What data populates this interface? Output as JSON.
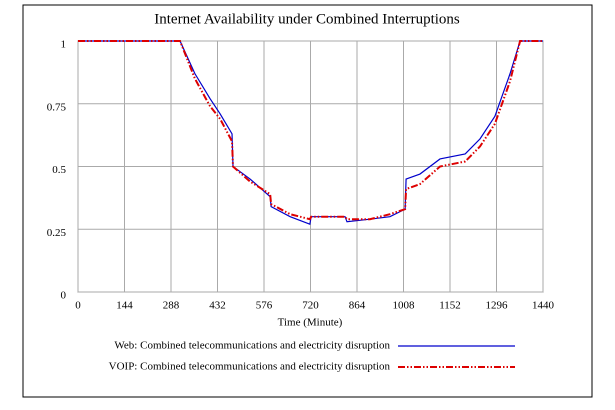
{
  "chart_data": {
    "type": "line",
    "title": "Internet Availability under Combined Interruptions",
    "x_label": "Time (Minute)",
    "x": [
      0,
      316,
      362,
      409,
      440,
      477,
      480,
      533,
      595,
      598,
      657,
      718,
      722,
      827,
      833,
      904,
      966,
      1013,
      1016,
      1059,
      1121,
      1199,
      1245,
      1291,
      1338,
      1369,
      1440
    ],
    "series": [
      {
        "name": "Web: Combined telecommunications and electricity disruption",
        "color": "#0000cc",
        "dash": "solid",
        "values": [
          1,
          1,
          0.87,
          0.77,
          0.71,
          0.63,
          0.5,
          0.45,
          0.38,
          0.34,
          0.3,
          0.27,
          0.3,
          0.3,
          0.28,
          0.29,
          0.3,
          0.33,
          0.45,
          0.47,
          0.53,
          0.55,
          0.61,
          0.7,
          0.87,
          1,
          1
        ]
      },
      {
        "name": "VOIP: Combined telecommunications and electricity disruption",
        "color": "#dd0000",
        "dash": "dash-dot-dot",
        "values": [
          1,
          1,
          0.85,
          0.74,
          0.69,
          0.6,
          0.5,
          0.44,
          0.39,
          0.35,
          0.31,
          0.29,
          0.3,
          0.3,
          0.29,
          0.29,
          0.31,
          0.33,
          0.41,
          0.43,
          0.5,
          0.52,
          0.58,
          0.67,
          0.84,
          1,
          1
        ]
      }
    ],
    "xlim": [
      0,
      1440
    ],
    "xticks": [
      0,
      144,
      288,
      432,
      576,
      720,
      864,
      1008,
      1152,
      1296,
      1440
    ],
    "ylim": [
      0,
      1
    ],
    "yticks": [
      0,
      0.25,
      0.5,
      0.75,
      1
    ],
    "grid": true
  }
}
